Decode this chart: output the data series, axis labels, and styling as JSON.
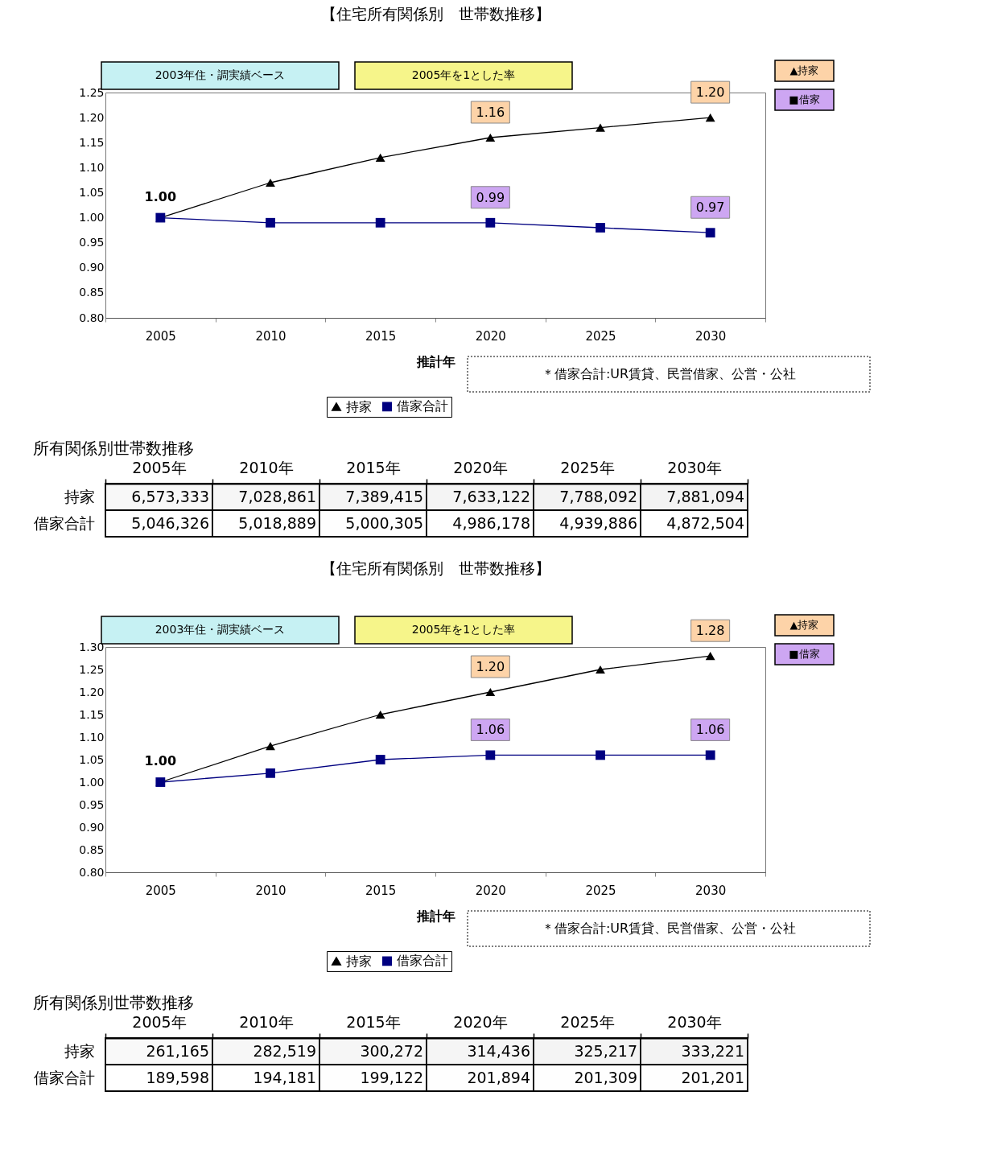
{
  "chart_data": [
    {
      "type": "line",
      "title": "【住宅所有関係別　世帯数推移】",
      "xlabel": "推計年",
      "categories": [
        "2005",
        "2010",
        "2015",
        "2020",
        "2025",
        "2030"
      ],
      "series": [
        {
          "name": "持家",
          "color": "#000000",
          "marker": "triangle",
          "values": [
            1.0,
            1.07,
            1.12,
            1.16,
            1.18,
            1.2
          ],
          "value_labels": [
            null,
            null,
            null,
            "1.16",
            null,
            "1.20"
          ]
        },
        {
          "name": "借家合計",
          "color": "#000080",
          "marker": "square",
          "values": [
            1.0,
            0.99,
            0.99,
            0.99,
            0.98,
            0.97
          ],
          "value_labels": [
            null,
            null,
            null,
            "0.99",
            null,
            "0.97"
          ]
        }
      ],
      "ylim": [
        0.8,
        1.25
      ],
      "yticks": [
        {
          "value": 0.8,
          "label": "0.80"
        },
        {
          "value": 0.85,
          "label": "0.85"
        },
        {
          "value": 0.9,
          "label": "0.90"
        },
        {
          "value": 0.95,
          "label": "0.95"
        },
        {
          "value": 1.0,
          "label": "1.00"
        },
        {
          "value": 1.05,
          "label": "1.05"
        },
        {
          "value": 1.1,
          "label": "1.10"
        },
        {
          "value": 1.15,
          "label": "1.15"
        },
        {
          "value": 1.2,
          "label": "1.20"
        },
        {
          "value": 1.25,
          "label": "1.25"
        }
      ],
      "legend": "bottom",
      "annotations": [
        "2003年住・調実績ベース",
        "2005年を1とした率",
        "▲持家",
        "■借家",
        "＊借家合計:UR賃貸、民営借家、公営・公社",
        {
          "text": "1.00",
          "x": "2005",
          "y": 1.0
        }
      ]
    },
    {
      "type": "heatmap",
      "title": "所有関係別世帯数推移",
      "categories": [
        "2005年",
        "2010年",
        "2015年",
        "2020年",
        "2025年",
        "2030年"
      ],
      "y_categories": [
        "持家",
        "借家合計"
      ],
      "cells": [
        [
          6573333,
          7028861,
          7389415,
          7633122,
          7788092,
          7881094
        ],
        [
          5046326,
          5018889,
          5000305,
          4986178,
          4939886,
          4872504
        ]
      ],
      "cell_labels": [
        [
          "6,573,333",
          "7,028,861",
          "7,389,415",
          "7,633,122",
          "7,788,092",
          "7,881,094"
        ],
        [
          "5,046,326",
          "5,018,889",
          "5,000,305",
          "4,986,178",
          "4,939,886",
          "4,872,504"
        ]
      ]
    },
    {
      "type": "line",
      "title": "【住宅所有関係別　世帯数推移】",
      "xlabel": "推計年",
      "categories": [
        "2005",
        "2010",
        "2015",
        "2020",
        "2025",
        "2030"
      ],
      "series": [
        {
          "name": "持家",
          "color": "#000000",
          "marker": "triangle",
          "values": [
            1.0,
            1.08,
            1.15,
            1.2,
            1.25,
            1.28
          ],
          "value_labels": [
            null,
            null,
            null,
            "1.20",
            null,
            "1.28"
          ]
        },
        {
          "name": "借家合計",
          "color": "#000080",
          "marker": "square",
          "values": [
            1.0,
            1.02,
            1.05,
            1.06,
            1.06,
            1.06
          ],
          "value_labels": [
            null,
            null,
            null,
            "1.06",
            null,
            "1.06"
          ]
        }
      ],
      "ylim": [
        0.8,
        1.3
      ],
      "yticks": [
        {
          "value": 0.8,
          "label": "0.80"
        },
        {
          "value": 0.85,
          "label": "0.85"
        },
        {
          "value": 0.9,
          "label": "0.90"
        },
        {
          "value": 0.95,
          "label": "0.95"
        },
        {
          "value": 1.0,
          "label": "1.00"
        },
        {
          "value": 1.05,
          "label": "1.05"
        },
        {
          "value": 1.1,
          "label": "1.10"
        },
        {
          "value": 1.15,
          "label": "1.15"
        },
        {
          "value": 1.2,
          "label": "1.20"
        },
        {
          "value": 1.25,
          "label": "1.25"
        },
        {
          "value": 1.3,
          "label": "1.30"
        }
      ],
      "legend": "bottom",
      "annotations": [
        "2003年住・調実績ベース",
        "2005年を1とした率",
        "▲持家",
        "■借家",
        "＊借家合計:UR賃貸、民営借家、公営・公社",
        {
          "text": "1.00",
          "x": "2005",
          "y": 1.0
        }
      ]
    },
    {
      "type": "heatmap",
      "title": "所有関係別世帯数推移",
      "categories": [
        "2005年",
        "2010年",
        "2015年",
        "2020年",
        "2025年",
        "2030年"
      ],
      "y_categories": [
        "持家",
        "借家合計"
      ],
      "cells": [
        [
          261165,
          282519,
          300272,
          314436,
          325217,
          333221
        ],
        [
          189598,
          194181,
          199122,
          201894,
          201309,
          201201
        ]
      ],
      "cell_labels": [
        [
          "261,165",
          "282,519",
          "300,272",
          "314,436",
          "325,217",
          "333,221"
        ],
        [
          "189,598",
          "194,181",
          "199,122",
          "201,894",
          "201,309",
          "201,201"
        ]
      ]
    }
  ]
}
